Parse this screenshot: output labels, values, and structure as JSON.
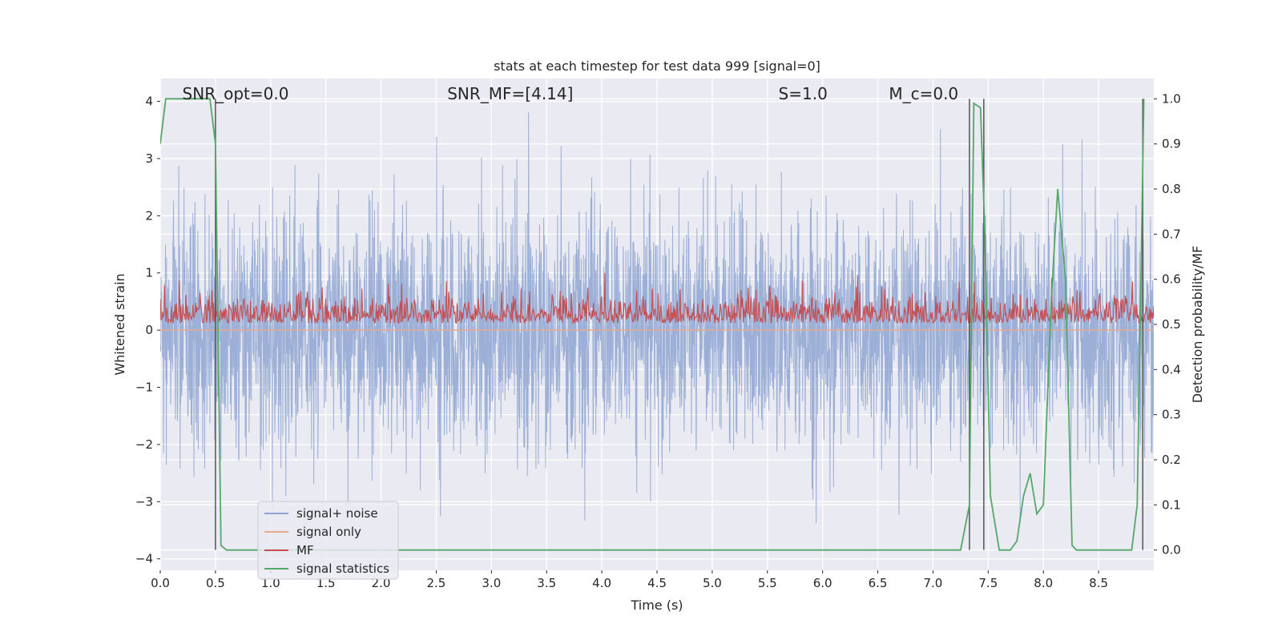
{
  "chart_data": {
    "type": "line",
    "title": "stats at each timestep for test data 999 [signal=0]",
    "xlabel": "Time (s)",
    "ylabel": "Whitened strain",
    "ylabel_right": "Detection probability/MF",
    "xlim": [
      0.0,
      9.0
    ],
    "ylim": [
      -4.2,
      4.4
    ],
    "ylim_right": [
      -0.045,
      1.045
    ],
    "xticks": [
      "0.0",
      "0.5",
      "1.0",
      "1.5",
      "2.0",
      "2.5",
      "3.0",
      "3.5",
      "4.0",
      "4.5",
      "5.0",
      "5.5",
      "6.0",
      "6.5",
      "7.0",
      "7.5",
      "8.0",
      "8.5"
    ],
    "xtick_values": [
      0,
      0.5,
      1,
      1.5,
      2,
      2.5,
      3,
      3.5,
      4,
      4.5,
      5,
      5.5,
      6,
      6.5,
      7,
      7.5,
      8,
      8.5
    ],
    "yticks": [
      "−4",
      "−3",
      "−2",
      "−1",
      "0",
      "1",
      "2",
      "3",
      "4"
    ],
    "ytick_values": [
      -4,
      -3,
      -2,
      -1,
      0,
      1,
      2,
      3,
      4
    ],
    "yticks_right": [
      "0.0",
      "0.1",
      "0.2",
      "0.3",
      "0.4",
      "0.5",
      "0.6",
      "0.7",
      "0.8",
      "0.9",
      "1.0"
    ],
    "ytick_right_values": [
      0,
      0.1,
      0.2,
      0.3,
      0.4,
      0.5,
      0.6,
      0.7,
      0.8,
      0.9,
      1.0
    ],
    "grid": true,
    "legend_position": "lower-left",
    "annotations": [
      {
        "text": "SNR_opt=0.0",
        "x": 0.2
      },
      {
        "text": "SNR_MF=[4.14]",
        "x": 2.6
      },
      {
        "text": "S=1.0",
        "x": 5.6
      },
      {
        "text": "M_c=0.0",
        "x": 6.6
      }
    ],
    "series": [
      {
        "name": "signal+ noise",
        "color": "#8ea5d1",
        "description": "whitened strain noise, approx N(0,1), spikes to about ±4"
      },
      {
        "name": "signal only",
        "color": "#e8a98e",
        "values_constant": 0.0
      },
      {
        "name": "MF",
        "color": "#c44e52",
        "range": [
          0.0,
          1.0
        ]
      },
      {
        "name": "signal statistics",
        "color": "#55a868",
        "axis": "right",
        "x": [
          0.0,
          0.05,
          0.1,
          0.2,
          0.3,
          0.4,
          0.45,
          0.5,
          0.55,
          0.6,
          0.7,
          1.0,
          2.0,
          3.0,
          4.0,
          5.0,
          6.0,
          7.0,
          7.25,
          7.33,
          7.37,
          7.43,
          7.47,
          7.52,
          7.6,
          7.7,
          7.76,
          7.82,
          7.88,
          7.94,
          8.0,
          8.07,
          8.13,
          8.2,
          8.26,
          8.3,
          8.5,
          8.8,
          8.85,
          8.91
        ],
        "y": [
          0.9,
          1.0,
          1.0,
          1.0,
          1.0,
          1.0,
          1.0,
          0.9,
          0.01,
          0.0,
          0.0,
          0.0,
          0.0,
          0.0,
          0.0,
          0.0,
          0.0,
          0.0,
          0.0,
          0.1,
          0.99,
          0.98,
          0.7,
          0.12,
          0.0,
          0.0,
          0.02,
          0.12,
          0.17,
          0.08,
          0.1,
          0.55,
          0.8,
          0.6,
          0.01,
          0.0,
          0.0,
          0.0,
          0.1,
          1.0
        ]
      }
    ],
    "vertical_markers": [
      0.5,
      7.33,
      7.46,
      8.9
    ]
  }
}
